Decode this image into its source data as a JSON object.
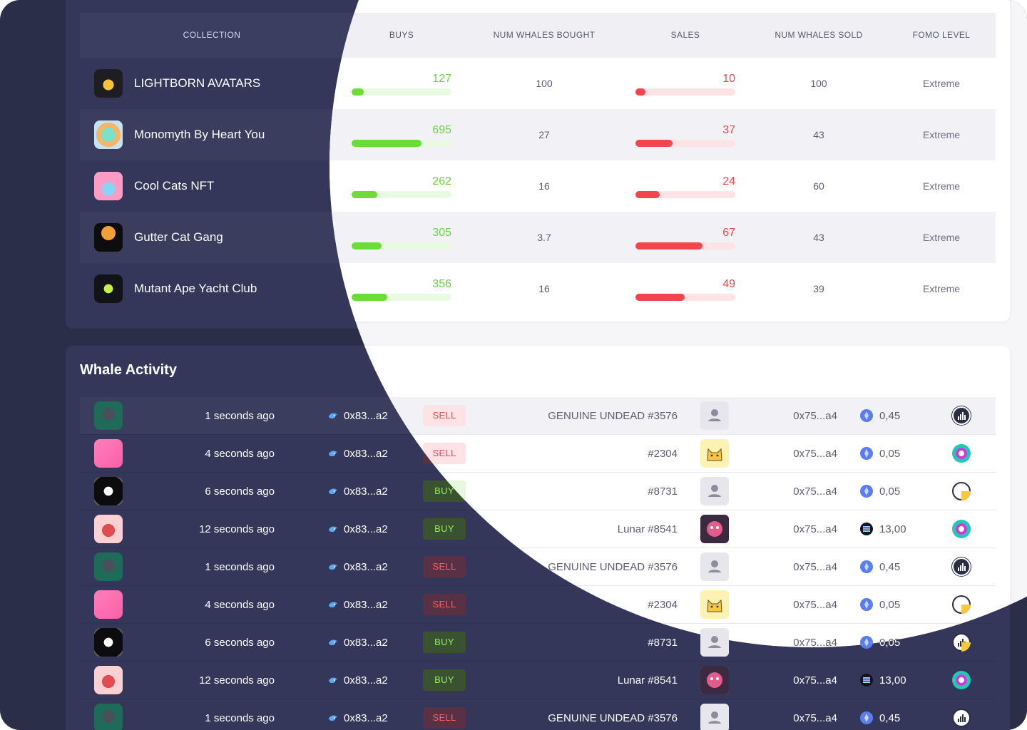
{
  "top_table": {
    "headers": {
      "collection": "COLLECTION",
      "buys": "BUYS",
      "num_whales_bought": "NUM WHALES BOUGHT",
      "sales": "SALES",
      "num_whales_sold": "NUM WHALES SOLD",
      "fomo_level": "FOMO LEVEL"
    },
    "rows": [
      {
        "name": "LIGHTBORN AVATARS",
        "buys": "127",
        "buys_fill": 0.12,
        "whales_bought": "100",
        "sales": "10",
        "sales_fill": 0.1,
        "whales_sold": "100",
        "fomo": "Extreme"
      },
      {
        "name": "Monomyth By Heart You",
        "buys": "695",
        "buys_fill": 0.7,
        "whales_bought": "27",
        "sales": "37",
        "sales_fill": 0.37,
        "whales_sold": "43",
        "fomo": "Extreme"
      },
      {
        "name": "Cool Cats NFT",
        "buys": "262",
        "buys_fill": 0.26,
        "whales_bought": "16",
        "sales": "24",
        "sales_fill": 0.24,
        "whales_sold": "60",
        "fomo": "Extreme"
      },
      {
        "name": "Gutter Cat Gang",
        "buys": "305",
        "buys_fill": 0.3,
        "whales_bought": "3.7",
        "sales": "67",
        "sales_fill": 0.67,
        "whales_sold": "43",
        "fomo": "Extreme"
      },
      {
        "name": "Mutant Ape Yacht Club",
        "buys": "356",
        "buys_fill": 0.36,
        "whales_bought": "16",
        "sales": "49",
        "sales_fill": 0.49,
        "whales_sold": "39",
        "fomo": "Extreme"
      }
    ]
  },
  "whale_activity": {
    "title": "Whale Activity",
    "rows": [
      {
        "time": "1 seconds ago",
        "from": "0x83...a2",
        "side": "SELL",
        "item": "GENUINE UNDEAD #3576",
        "to": "0x75...a4",
        "coin": "eth",
        "price": "0,45",
        "market": "dark"
      },
      {
        "time": "4 seconds ago",
        "from": "0x83...a2",
        "side": "SELL",
        "item": "#2304",
        "to": "0x75...a4",
        "coin": "eth",
        "price": "0,05",
        "market": "ring"
      },
      {
        "time": "6 seconds ago",
        "from": "0x83...a2",
        "side": "BUY",
        "item": "#8731",
        "to": "0x75...a4",
        "coin": "eth",
        "price": "0,05",
        "market": "yellow"
      },
      {
        "time": "12 seconds ago",
        "from": "0x83...a2",
        "side": "BUY",
        "item": "Lunar #8541",
        "to": "0x75...a4",
        "coin": "sol",
        "price": "13,00",
        "market": "ring"
      },
      {
        "time": "1 seconds ago",
        "from": "0x83...a2",
        "side": "SELL",
        "item": "GENUINE UNDEAD #3576",
        "to": "0x75...a4",
        "coin": "eth",
        "price": "0,45",
        "market": "dark"
      },
      {
        "time": "4 seconds ago",
        "from": "0x83...a2",
        "side": "SELL",
        "item": "#2304",
        "to": "0x75...a4",
        "coin": "eth",
        "price": "0,05",
        "market": "yellow"
      },
      {
        "time": "6 seconds ago",
        "from": "0x83...a2",
        "side": "BUY",
        "item": "#8731",
        "to": "0x75...a4",
        "coin": "eth",
        "price": "0,05",
        "market": "yellow"
      },
      {
        "time": "12 seconds ago",
        "from": "0x83...a2",
        "side": "BUY",
        "item": "Lunar #8541",
        "to": "0x75...a4",
        "coin": "sol",
        "price": "13,00",
        "market": "ring"
      },
      {
        "time": "1 seconds ago",
        "from": "0x83...a2",
        "side": "SELL",
        "item": "GENUINE UNDEAD #3576",
        "to": "0x75...a4",
        "coin": "eth",
        "price": "0,45",
        "market": "dark"
      }
    ]
  }
}
